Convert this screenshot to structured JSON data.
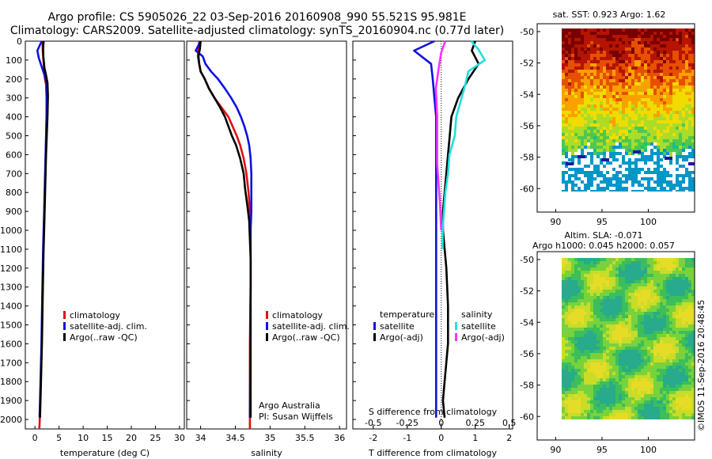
{
  "header": {
    "line1": "Argo profile: CS 5905026_22 03-Sep-2016 20160908_990 55.521S 95.981E",
    "line2": "Climatology: CARS2009. Satellite-adjusted climatology: synTS_20160904.nc (0.77d later)"
  },
  "colors": {
    "climatology": "#e01010",
    "satellite": "#1010e0",
    "argo": "#000000",
    "satellite_salinity": "#20e0e0",
    "argo_salinity": "#ff30ff"
  },
  "chart_data": [
    {
      "type": "line",
      "panel": "temperature",
      "xlabel": "temperature (deg C)",
      "xlim": [
        -2,
        31
      ],
      "xticks": [
        0,
        5,
        10,
        15,
        20,
        25,
        30
      ],
      "ylim": [
        0,
        2050
      ],
      "yticks": [
        0,
        100,
        200,
        300,
        400,
        500,
        600,
        700,
        800,
        900,
        1000,
        1100,
        1200,
        1300,
        1400,
        1500,
        1600,
        1700,
        1800,
        1900,
        2000
      ],
      "legend": [
        "climatology",
        "satellite-adj. clim.",
        "Argo(..raw -QC)"
      ],
      "series": [
        {
          "name": "climatology",
          "x": [
            1.6,
            1.6,
            1.7,
            1.9,
            2.0,
            2.3,
            2.4,
            2.4,
            2.35,
            2.25,
            2.15,
            2.05,
            1.95,
            1.85,
            1.75,
            1.6,
            1.5,
            1.4,
            1.3,
            1.15,
            1.0,
            0.9
          ],
          "y": [
            0,
            40,
            80,
            150,
            190,
            230,
            300,
            400,
            500,
            600,
            700,
            800,
            900,
            1000,
            1100,
            1300,
            1450,
            1600,
            1700,
            1850,
            2000,
            2050
          ]
        },
        {
          "name": "satellite-adj. clim.",
          "x": [
            1.4,
            0.5,
            0.8,
            1.6,
            2.1,
            2.4,
            2.45,
            2.4,
            2.3,
            2.2,
            2.1,
            2.0,
            1.9,
            1.8,
            1.7,
            1.55,
            1.45,
            1.35,
            1.25,
            1.1,
            0.95
          ],
          "y": [
            0,
            50,
            90,
            150,
            190,
            230,
            300,
            400,
            500,
            600,
            700,
            800,
            900,
            1000,
            1100,
            1300,
            1450,
            1600,
            1700,
            1850,
            1990
          ]
        },
        {
          "name": "Argo(..raw -QC)",
          "x": [
            1.8,
            1.7,
            1.75,
            1.95,
            2.3,
            2.6,
            2.7,
            2.6,
            2.45,
            2.3,
            2.2,
            2.1,
            2.0,
            1.9,
            1.8,
            1.65,
            1.55,
            1.45,
            1.35,
            1.2,
            1.05
          ],
          "y": [
            0,
            40,
            80,
            140,
            180,
            220,
            290,
            400,
            500,
            600,
            700,
            800,
            900,
            1000,
            1100,
            1300,
            1450,
            1600,
            1700,
            1850,
            1990
          ]
        }
      ]
    },
    {
      "type": "line",
      "panel": "salinity",
      "xlabel": "salinity",
      "xlim": [
        33.8,
        36.1
      ],
      "xticks": [
        34,
        34.5,
        35,
        35.5,
        36
      ],
      "ylim": [
        0,
        2050
      ],
      "legend": [
        "climatology",
        "satellite-adj. clim.",
        "Argo(..raw -QC)"
      ],
      "annotation": [
        "Argo Australia",
        "PI: Susan Wijffels"
      ],
      "series": [
        {
          "name": "climatology",
          "x": [
            33.98,
            33.97,
            33.96,
            33.98,
            34.0,
            34.06,
            34.12,
            34.2,
            34.3,
            34.4,
            34.46,
            34.52,
            34.57,
            34.62,
            34.66,
            34.69,
            34.71,
            34.72,
            34.72,
            34.72,
            34.71,
            34.71
          ],
          "y": [
            0,
            40,
            80,
            120,
            160,
            200,
            250,
            300,
            350,
            400,
            450,
            500,
            550,
            620,
            700,
            800,
            900,
            1000,
            1100,
            1300,
            1600,
            2050
          ]
        },
        {
          "name": "satellite-adj. clim.",
          "x": [
            34.0,
            33.93,
            34.03,
            34.07,
            34.15,
            34.25,
            34.35,
            34.44,
            34.52,
            34.58,
            34.63,
            34.67,
            34.7,
            34.72,
            34.73,
            34.73,
            34.73,
            34.72,
            34.72,
            34.72,
            34.71
          ],
          "y": [
            0,
            50,
            80,
            120,
            160,
            200,
            250,
            300,
            350,
            400,
            450,
            500,
            550,
            620,
            700,
            800,
            900,
            1000,
            1100,
            1300,
            1990
          ]
        },
        {
          "name": "Argo(..raw -QC)",
          "x": [
            34.0,
            33.99,
            33.97,
            33.98,
            34.0,
            34.06,
            34.12,
            34.2,
            34.28,
            34.35,
            34.4,
            34.45,
            34.51,
            34.57,
            34.62,
            34.64,
            34.67,
            34.7,
            34.71,
            34.72,
            34.72,
            34.72
          ],
          "y": [
            0,
            40,
            80,
            120,
            160,
            200,
            250,
            300,
            350,
            400,
            450,
            500,
            550,
            620,
            700,
            780,
            860,
            950,
            1050,
            1150,
            1400,
            1990
          ]
        }
      ]
    },
    {
      "type": "line",
      "panel": "differences",
      "xlabel": "T difference from climatology",
      "xlim": [
        -2.6,
        2.1
      ],
      "xticks": [
        -2,
        -1,
        0,
        1,
        2
      ],
      "top_axis_label": "S difference from climatology",
      "top_ticks": [
        "-0.5",
        "-0.25",
        "0",
        "0.25",
        "0.5"
      ],
      "top_tick_values": [
        -0.5,
        -0.25,
        0,
        0.25,
        0.5
      ],
      "ylim": [
        0,
        2050
      ],
      "legend_temperature_title": "temperature",
      "legend_salinity_title": "salinity",
      "legend_temperature": [
        "satellite",
        "Argo(-adj)"
      ],
      "legend_salinity": [
        "satellite",
        "Argo(-adj)"
      ],
      "series": [
        {
          "name": "temperature satellite",
          "x": [
            -0.2,
            -0.8,
            -0.3,
            -0.25,
            -0.2,
            -0.15,
            -0.15,
            -0.15,
            -0.15,
            -0.15,
            -0.15,
            -0.15,
            -0.15,
            -0.15,
            -0.15,
            -0.15,
            -0.15,
            -0.15
          ],
          "y": [
            0,
            50,
            120,
            200,
            300,
            400,
            500,
            600,
            700,
            800,
            900,
            1000,
            1200,
            1400,
            1600,
            1800,
            1900,
            1990
          ]
        },
        {
          "name": "temperature Argo(-adj)",
          "x": [
            1.0,
            0.9,
            1.1,
            0.8,
            0.5,
            0.3,
            0.25,
            0.2,
            0.15,
            0.1,
            0.05,
            0.05,
            0.15,
            0.2,
            0.2,
            0.1,
            0.05,
            0.1
          ],
          "y": [
            0,
            50,
            120,
            200,
            300,
            400,
            500,
            600,
            700,
            800,
            900,
            1000,
            1200,
            1400,
            1600,
            1800,
            1900,
            1990
          ]
        },
        {
          "name": "salinity satellite",
          "x": [
            0.22,
            0.27,
            0.32,
            0.2,
            0.18,
            0.15,
            0.11,
            0.1,
            0.06,
            0.05,
            0.03,
            0.02,
            0.01,
            0.01
          ],
          "y": [
            0,
            40,
            100,
            160,
            220,
            300,
            400,
            500,
            600,
            700,
            800,
            900,
            1000,
            1100
          ]
        },
        {
          "name": "salinity Argo(-adj)",
          "x": [
            0.03,
            0.0,
            -0.02,
            -0.04,
            -0.03,
            -0.03,
            -0.03,
            -0.02,
            -0.01,
            0.0
          ],
          "y": [
            0,
            60,
            150,
            250,
            400,
            500,
            650,
            750,
            850,
            1000
          ]
        }
      ]
    },
    {
      "type": "heatmap",
      "panel": "sat_sst_map",
      "title": "sat. SST: 0.923 Argo: 1.62",
      "xticks": [
        90,
        95,
        100
      ],
      "yticks": [
        -50,
        -52,
        -54,
        -56,
        -58,
        -60
      ],
      "xlim": [
        88,
        105
      ],
      "ylim": [
        -61.5,
        -49.5
      ]
    },
    {
      "type": "heatmap",
      "panel": "altimetry_map",
      "title": "Altim. SLA: -0.071",
      "subtitle": "Argo h1000: 0.045 h2000: 0.057",
      "xticks": [
        90,
        95,
        100
      ],
      "yticks": [
        -50,
        -52,
        -54,
        -56,
        -58,
        -60
      ],
      "xlim": [
        88,
        105
      ],
      "ylim": [
        -61.5,
        -49.5
      ]
    }
  ],
  "credit": "©IMOS 11-Sep-2016 20:48:45"
}
